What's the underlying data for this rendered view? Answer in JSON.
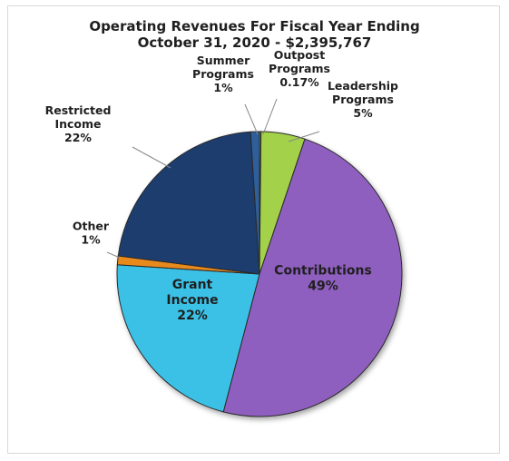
{
  "chart_data": {
    "type": "pie",
    "title": "Operating Revenues For Fiscal Year Ending",
    "subtitle": "October 31, 2020 - $2,395,767",
    "slices": [
      {
        "label": "Outpost Programs",
        "value": 0.17,
        "pct_label": "0.17%",
        "color": "#7e9c2e"
      },
      {
        "label": "Leadership Programs",
        "value": 5,
        "pct_label": "5%",
        "color": "#a3d14a"
      },
      {
        "label": "Contributions",
        "value": 49,
        "pct_label": "49%",
        "color": "#8f5fbf"
      },
      {
        "label": "Grant Income",
        "value": 22,
        "pct_label": "22%",
        "color": "#3bc1e6"
      },
      {
        "label": "Other",
        "value": 1,
        "pct_label": "1%",
        "color": "#e8891f"
      },
      {
        "label": "Restricted Income",
        "value": 22,
        "pct_label": "22%",
        "color": "#1f3c6e"
      },
      {
        "label": "Summer Programs",
        "value": 1,
        "pct_label": "1%",
        "color": "#2f5f9a"
      }
    ]
  }
}
